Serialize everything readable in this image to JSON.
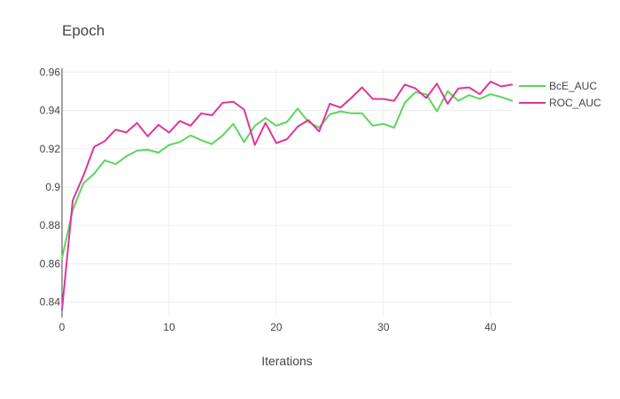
{
  "chart_data": {
    "type": "line",
    "title": "Epoch",
    "xlabel": "Iterations",
    "ylabel": "",
    "xlim": [
      0,
      42
    ],
    "ylim": [
      0.832,
      0.962
    ],
    "x_ticks": [
      0,
      10,
      20,
      30,
      40
    ],
    "x_tick_labels": [
      "0",
      "10",
      "20",
      "30",
      "40"
    ],
    "y_ticks": [
      0.84,
      0.86,
      0.88,
      0.9,
      0.92,
      0.94,
      0.96
    ],
    "y_tick_labels": [
      "0.84",
      "0.86",
      "0.88",
      "0.9",
      "0.92",
      "0.94",
      "0.96"
    ],
    "grid": true,
    "legend_position": "top-right, outside plot",
    "x": [
      0,
      1,
      2,
      3,
      4,
      5,
      6,
      7,
      8,
      9,
      10,
      11,
      12,
      13,
      14,
      15,
      16,
      17,
      18,
      19,
      20,
      21,
      22,
      23,
      24,
      25,
      26,
      27,
      28,
      29,
      30,
      31,
      32,
      33,
      34,
      35,
      36,
      37,
      38,
      39,
      40,
      41,
      42
    ],
    "series": [
      {
        "name": "BcE_AUC",
        "color": "#5cd65c",
        "values": [
          0.863,
          0.888,
          0.902,
          0.907,
          0.914,
          0.912,
          0.916,
          0.919,
          0.9195,
          0.918,
          0.922,
          0.9235,
          0.927,
          0.9245,
          0.9225,
          0.927,
          0.933,
          0.9235,
          0.932,
          0.936,
          0.932,
          0.934,
          0.941,
          0.934,
          0.931,
          0.938,
          0.9395,
          0.9385,
          0.9385,
          0.932,
          0.933,
          0.931,
          0.944,
          0.9495,
          0.9485,
          0.9395,
          0.95,
          0.945,
          0.948,
          0.946,
          0.9485,
          0.947,
          0.945
        ]
      },
      {
        "name": "ROC_AUC",
        "color": "#e0359a",
        "values": [
          0.836,
          0.893,
          0.906,
          0.921,
          0.924,
          0.93,
          0.9285,
          0.9335,
          0.9265,
          0.9325,
          0.9285,
          0.9345,
          0.932,
          0.9385,
          0.9375,
          0.944,
          0.9445,
          0.9405,
          0.922,
          0.9335,
          0.923,
          0.925,
          0.9315,
          0.935,
          0.929,
          0.9435,
          0.9415,
          0.9465,
          0.952,
          0.946,
          0.946,
          0.945,
          0.9535,
          0.9515,
          0.9465,
          0.954,
          0.9435,
          0.9515,
          0.952,
          0.9485,
          0.955,
          0.9525,
          0.9535
        ]
      }
    ]
  }
}
